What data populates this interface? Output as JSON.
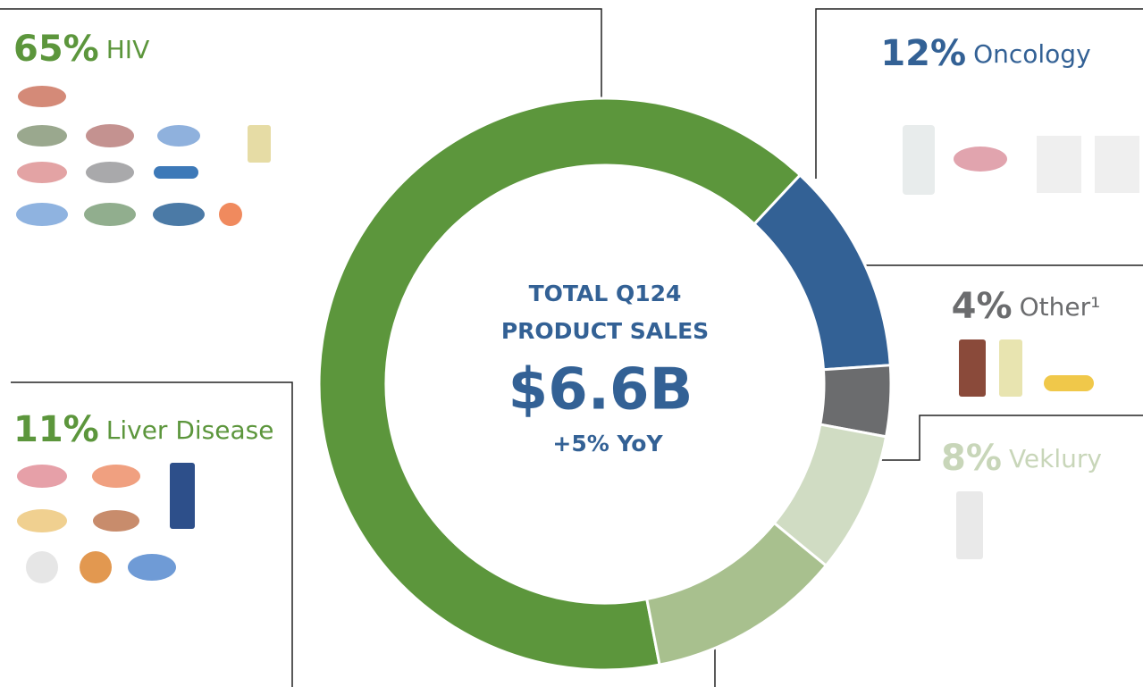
{
  "chart_data": {
    "type": "donut",
    "center_lines": [
      "TOTAL Q124",
      "PRODUCT SALES"
    ],
    "total": "$6.6B",
    "change": "+5% YoY",
    "categories": [
      "HIV",
      "Oncology",
      "Other¹",
      "Veklury",
      "Liver Disease"
    ],
    "values": [
      65,
      12,
      4,
      8,
      11
    ],
    "value_labels": [
      "65%",
      "12%",
      "4%",
      "8%",
      "11%"
    ],
    "colors": [
      "#5c963c",
      "#336195",
      "#6b6c6e",
      "#d0dcc3",
      "#a8c08e"
    ],
    "label_colors": [
      "#5c963c",
      "#336195",
      "#6b6c6e",
      "#c8d6b9",
      "#5c963c"
    ]
  }
}
